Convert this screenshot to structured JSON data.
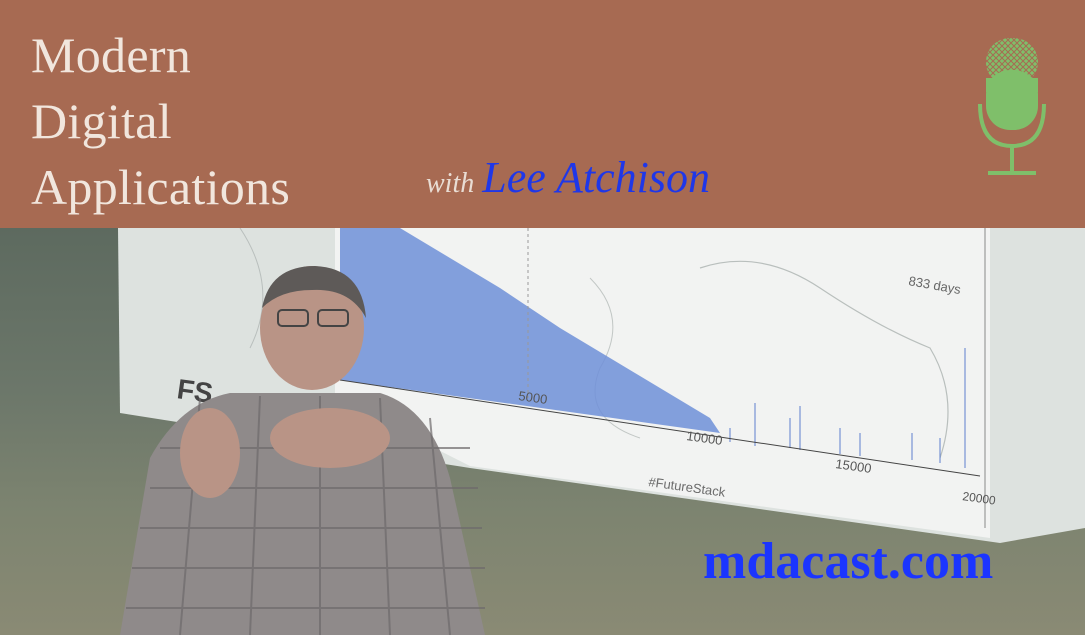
{
  "banner": {
    "title_lines": [
      "Modern",
      "Digital",
      "Applications"
    ],
    "with_text": "with",
    "host_name": "Lee Atchison"
  },
  "photo": {
    "slide": {
      "tick_labels": [
        "5000",
        "10000",
        "15000",
        "20000"
      ],
      "annotation": "833 days",
      "hashtag": "#FutureStack",
      "logo_text": "FS"
    }
  },
  "footer": {
    "site_url": "mdacast.com"
  },
  "icons": {
    "microphone": "microphone-icon"
  },
  "colors": {
    "banner_bg": "#a76a52",
    "host_name": "#1f37e8",
    "site_url": "#1b35ff",
    "mic": "#7fbf6a"
  }
}
